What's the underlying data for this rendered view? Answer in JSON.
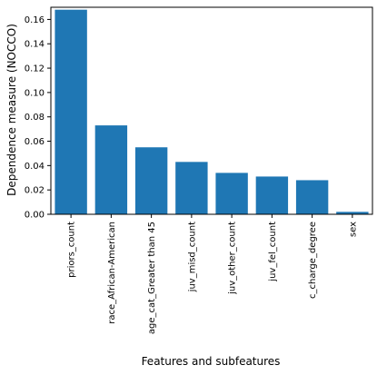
{
  "chart_data": {
    "type": "bar",
    "title": "",
    "xlabel": "Features and subfeatures",
    "ylabel": "Dependence measure (NOCCO)",
    "categories": [
      "priors_count",
      "race_African-American",
      "age_cat_Greater than 45",
      "juv_misd_count",
      "juv_other_count",
      "juv_fel_count",
      "c_charge_degree",
      "sex"
    ],
    "values": [
      0.168,
      0.073,
      0.055,
      0.043,
      0.034,
      0.031,
      0.028,
      0.002
    ],
    "ylim": [
      0,
      0.17
    ],
    "yticks": [
      "0.00",
      "0.02",
      "0.04",
      "0.06",
      "0.08",
      "0.10",
      "0.12",
      "0.14",
      "0.16"
    ],
    "bar_color": "#1f77b4",
    "grid": false
  }
}
